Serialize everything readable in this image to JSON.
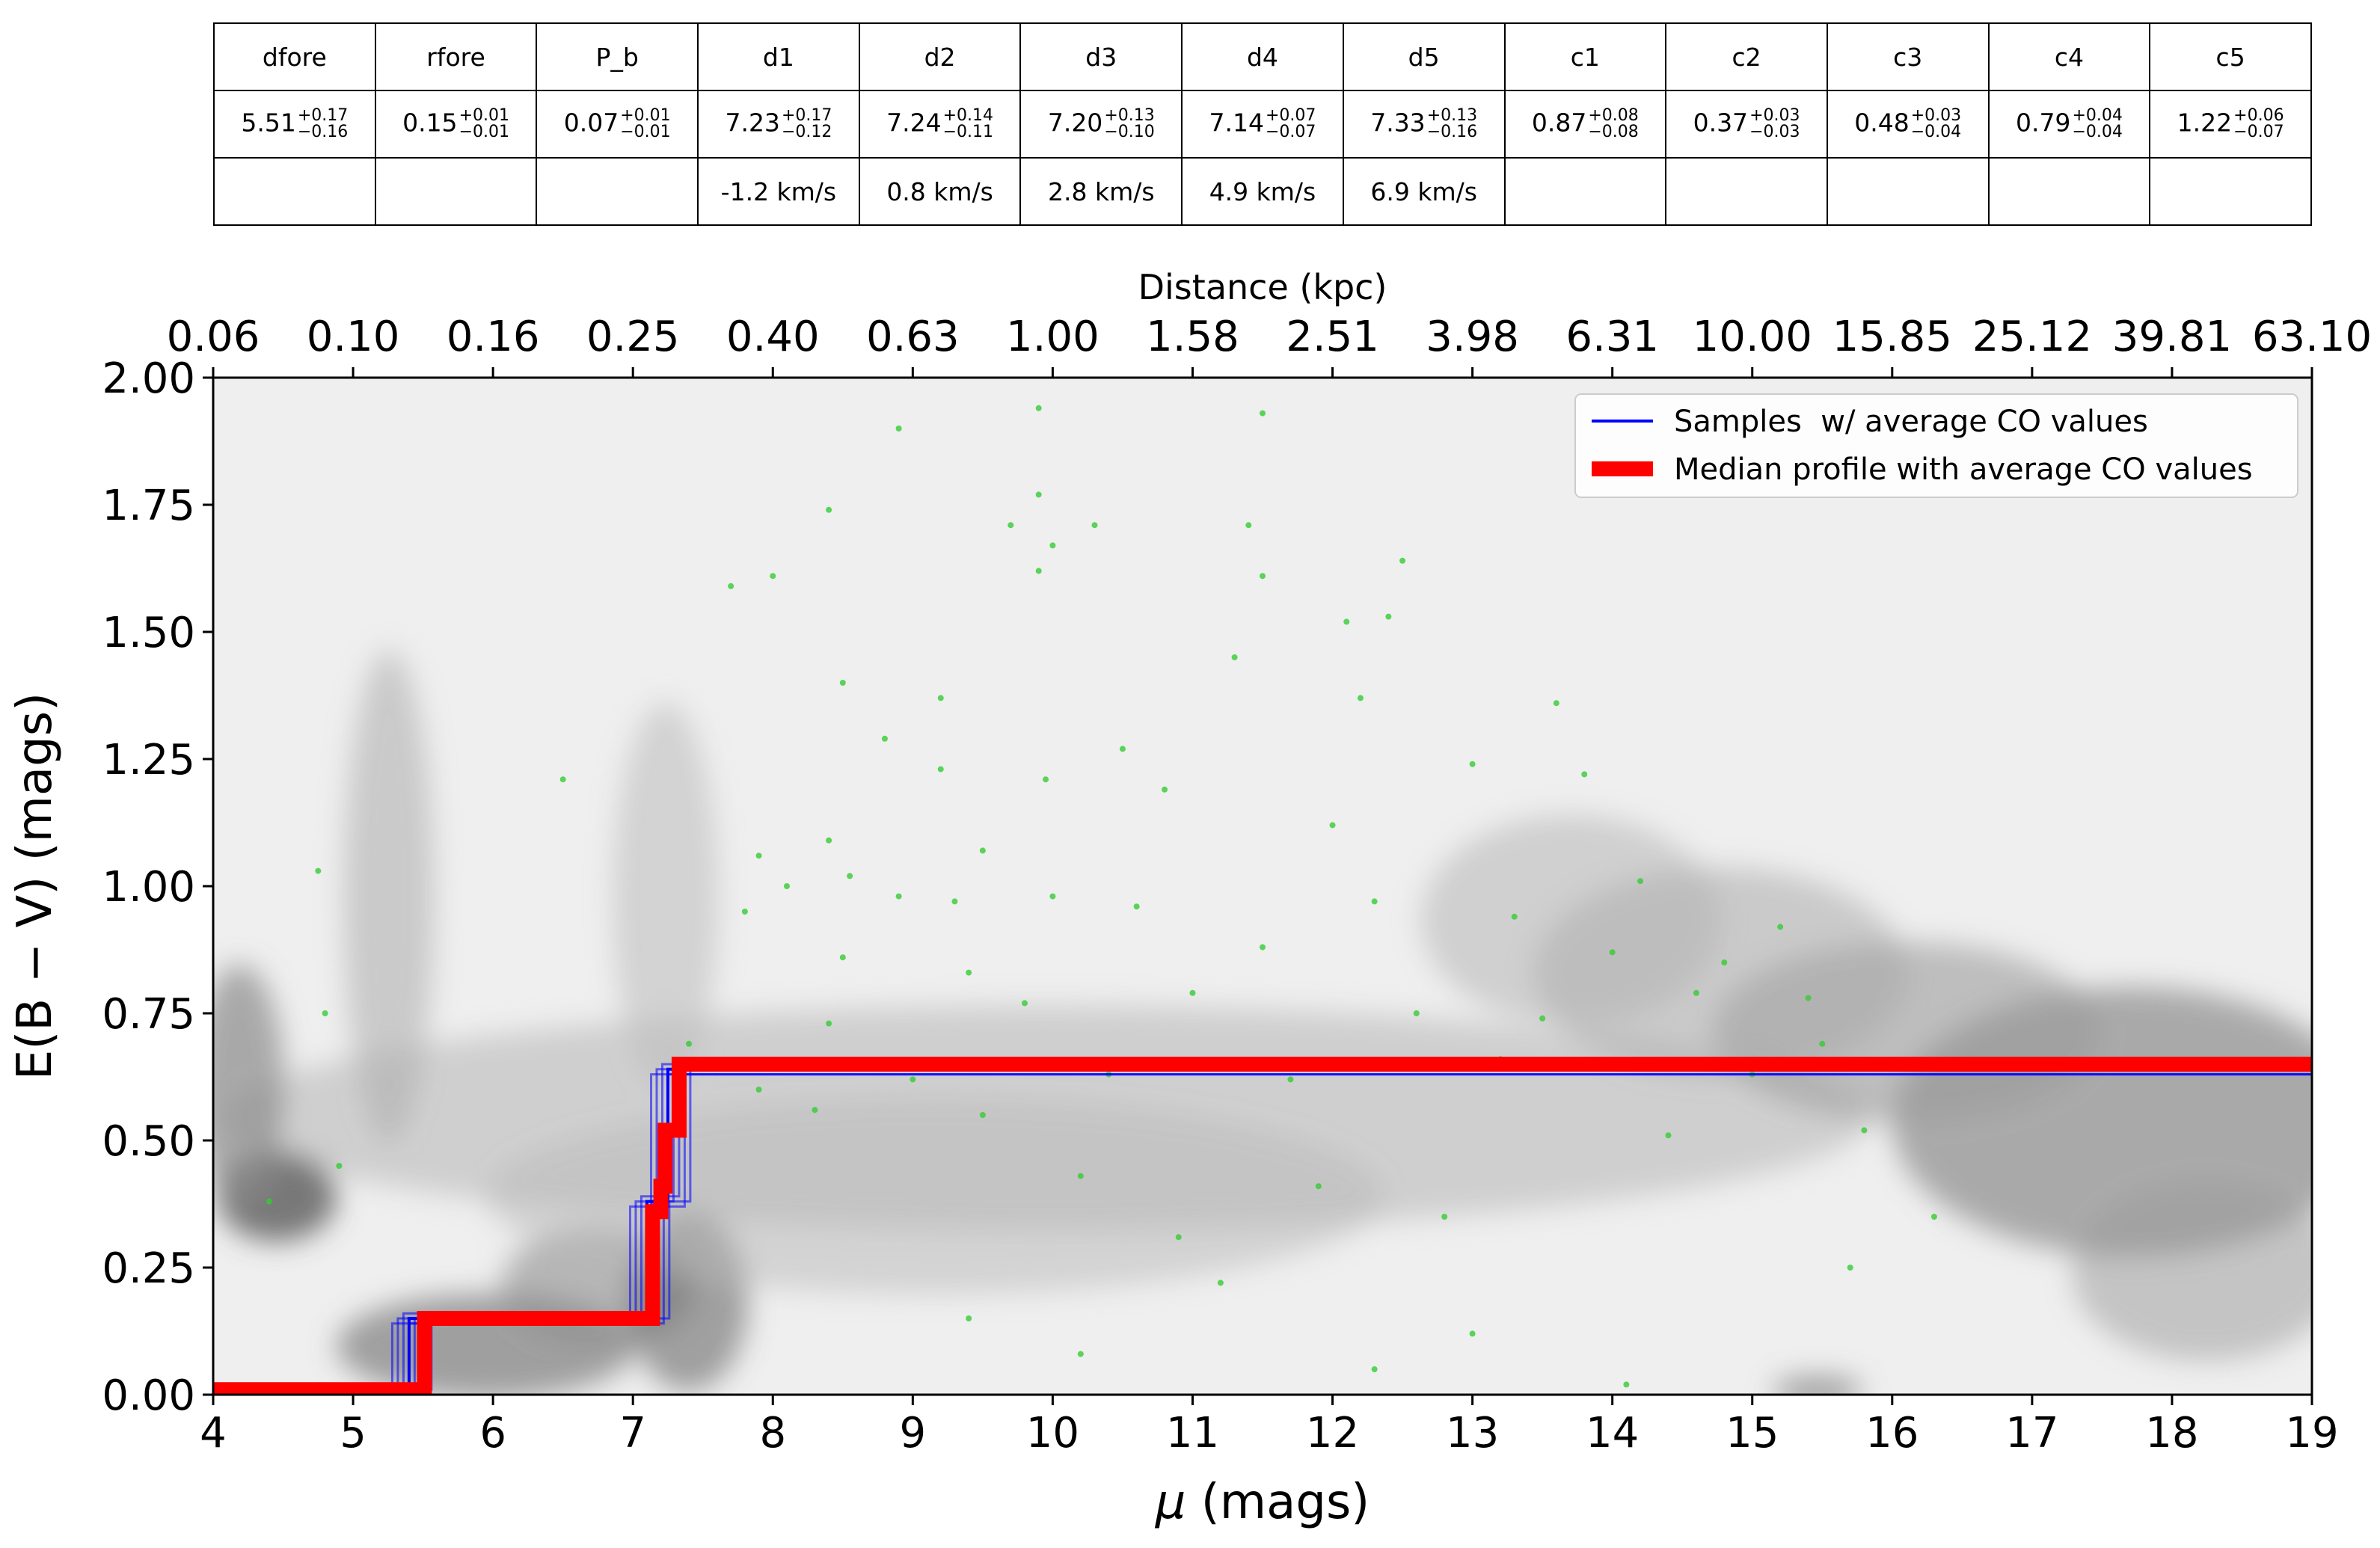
{
  "table": {
    "headers": [
      "dfore",
      "rfore",
      "P_b",
      "d1",
      "d2",
      "d3",
      "d4",
      "d5",
      "c1",
      "c2",
      "c3",
      "c4",
      "c5"
    ],
    "values": [
      {
        "base": "5.51",
        "plus": "+0.17",
        "minus": "−0.16"
      },
      {
        "base": "0.15",
        "plus": "+0.01",
        "minus": "−0.01"
      },
      {
        "base": "0.07",
        "plus": "+0.01",
        "minus": "−0.01"
      },
      {
        "base": "7.23",
        "plus": "+0.17",
        "minus": "−0.12"
      },
      {
        "base": "7.24",
        "plus": "+0.14",
        "minus": "−0.11"
      },
      {
        "base": "7.20",
        "plus": "+0.13",
        "minus": "−0.10"
      },
      {
        "base": "7.14",
        "plus": "+0.07",
        "minus": "−0.07"
      },
      {
        "base": "7.33",
        "plus": "+0.13",
        "minus": "−0.16"
      },
      {
        "base": "0.87",
        "plus": "+0.08",
        "minus": "−0.08"
      },
      {
        "base": "0.37",
        "plus": "+0.03",
        "minus": "−0.03"
      },
      {
        "base": "0.48",
        "plus": "+0.03",
        "minus": "−0.04"
      },
      {
        "base": "0.79",
        "plus": "+0.04",
        "minus": "−0.04"
      },
      {
        "base": "1.22",
        "plus": "+0.06",
        "minus": "−0.07"
      }
    ],
    "velocities": [
      "",
      "",
      "",
      "-1.2 km/s",
      "0.8 km/s",
      "2.8 km/s",
      "4.9 km/s",
      "6.9 km/s",
      "",
      "",
      "",
      "",
      ""
    ]
  },
  "chart_data": {
    "type": "line",
    "xlabel_prefix": "μ",
    "xlabel_suffix": " (mags)",
    "ylabel": "E(B − V) (mags)",
    "top_axis_label": "Distance (kpc)",
    "xlim": [
      4,
      19
    ],
    "ylim": [
      0.0,
      2.0
    ],
    "xticks": [
      "4",
      "5",
      "6",
      "7",
      "8",
      "9",
      "10",
      "11",
      "12",
      "13",
      "14",
      "15",
      "16",
      "17",
      "18",
      "19"
    ],
    "yticks": [
      "0.00",
      "0.25",
      "0.50",
      "0.75",
      "1.00",
      "1.25",
      "1.50",
      "1.75",
      "2.00"
    ],
    "top_ticks": [
      {
        "mu": 4.0,
        "label": "0.06"
      },
      {
        "mu": 5.0,
        "label": "0.10"
      },
      {
        "mu": 6.0,
        "label": "0.16"
      },
      {
        "mu": 7.0,
        "label": "0.25"
      },
      {
        "mu": 8.0,
        "label": "0.40"
      },
      {
        "mu": 9.0,
        "label": "0.63"
      },
      {
        "mu": 10.0,
        "label": "1.00"
      },
      {
        "mu": 11.0,
        "label": "1.58"
      },
      {
        "mu": 12.0,
        "label": "2.51"
      },
      {
        "mu": 13.0,
        "label": "3.98"
      },
      {
        "mu": 14.0,
        "label": "6.31"
      },
      {
        "mu": 15.0,
        "label": "10.00"
      },
      {
        "mu": 16.0,
        "label": "15.85"
      },
      {
        "mu": 17.0,
        "label": "25.12"
      },
      {
        "mu": 18.0,
        "label": "39.81"
      },
      {
        "mu": 19.0,
        "label": "63.10"
      }
    ],
    "legend_position": "top-right",
    "series": [
      {
        "name": "Samples  w/ average CO values",
        "color": "#0000ff",
        "x": [
          4.0,
          5.4,
          5.4,
          7.1,
          7.1,
          7.25,
          7.25,
          19.0
        ],
        "y": [
          0.01,
          0.01,
          0.15,
          0.15,
          0.38,
          0.38,
          0.64,
          0.64
        ]
      },
      {
        "name": "Median profile with average CO values",
        "color": "#ff0000",
        "x": [
          4.0,
          5.51,
          5.51,
          7.14,
          7.14,
          7.2,
          7.2,
          7.23,
          7.23,
          7.33,
          7.33,
          19.0
        ],
        "y": [
          0.01,
          0.01,
          0.15,
          0.15,
          0.36,
          0.36,
          0.41,
          0.41,
          0.52,
          0.52,
          0.65,
          0.65
        ]
      }
    ],
    "star_points_color": "#33cc33",
    "star_points": [
      [
        4.8,
        0.75
      ],
      [
        4.75,
        1.03
      ],
      [
        4.4,
        0.38
      ],
      [
        6.5,
        1.21
      ],
      [
        4.9,
        0.45
      ],
      [
        7.4,
        0.69
      ],
      [
        7.7,
        1.59
      ],
      [
        7.9,
        1.06
      ],
      [
        7.8,
        0.95
      ],
      [
        8.0,
        1.61
      ],
      [
        8.1,
        1.0
      ],
      [
        7.9,
        0.6
      ],
      [
        8.4,
        1.74
      ],
      [
        8.4,
        1.09
      ],
      [
        8.4,
        0.73
      ],
      [
        8.3,
        0.56
      ],
      [
        8.5,
        0.86
      ],
      [
        8.5,
        1.4
      ],
      [
        8.55,
        1.02
      ],
      [
        8.8,
        1.29
      ],
      [
        8.9,
        0.98
      ],
      [
        8.9,
        1.9
      ],
      [
        9.0,
        0.62
      ],
      [
        9.2,
        1.37
      ],
      [
        9.2,
        1.23
      ],
      [
        9.3,
        0.97
      ],
      [
        9.4,
        0.83
      ],
      [
        9.5,
        1.07
      ],
      [
        9.5,
        0.55
      ],
      [
        9.7,
        1.71
      ],
      [
        9.8,
        0.77
      ],
      [
        9.9,
        1.94
      ],
      [
        9.9,
        1.77
      ],
      [
        9.9,
        1.62
      ],
      [
        10.0,
        1.67
      ],
      [
        9.95,
        1.21
      ],
      [
        10.0,
        0.98
      ],
      [
        10.3,
        1.71
      ],
      [
        10.2,
        0.43
      ],
      [
        10.4,
        0.63
      ],
      [
        10.5,
        1.27
      ],
      [
        10.6,
        0.96
      ],
      [
        10.8,
        1.19
      ],
      [
        10.9,
        0.31
      ],
      [
        11.0,
        0.79
      ],
      [
        11.3,
        1.45
      ],
      [
        11.4,
        1.71
      ],
      [
        11.5,
        1.93
      ],
      [
        11.5,
        1.61
      ],
      [
        11.5,
        0.88
      ],
      [
        11.7,
        0.62
      ],
      [
        11.9,
        0.41
      ],
      [
        12.0,
        1.12
      ],
      [
        12.1,
        1.52
      ],
      [
        12.2,
        1.37
      ],
      [
        12.3,
        0.97
      ],
      [
        12.4,
        1.53
      ],
      [
        12.5,
        1.64
      ],
      [
        12.6,
        0.75
      ],
      [
        12.8,
        0.35
      ],
      [
        13.0,
        1.24
      ],
      [
        13.2,
        0.66
      ],
      [
        13.3,
        0.94
      ],
      [
        13.5,
        0.74
      ],
      [
        13.6,
        1.36
      ],
      [
        13.8,
        1.22
      ],
      [
        14.0,
        0.87
      ],
      [
        14.2,
        1.01
      ],
      [
        14.4,
        0.51
      ],
      [
        14.6,
        0.79
      ],
      [
        14.8,
        0.85
      ],
      [
        15.0,
        0.63
      ],
      [
        15.2,
        0.92
      ],
      [
        15.4,
        0.78
      ],
      [
        15.5,
        0.69
      ],
      [
        15.7,
        0.25
      ],
      [
        15.8,
        0.52
      ],
      [
        16.3,
        0.35
      ],
      [
        14.1,
        0.02
      ],
      [
        12.3,
        0.05
      ],
      [
        10.2,
        0.08
      ],
      [
        9.4,
        0.15
      ],
      [
        11.2,
        0.22
      ],
      [
        13.0,
        0.12
      ]
    ],
    "grid": false
  }
}
